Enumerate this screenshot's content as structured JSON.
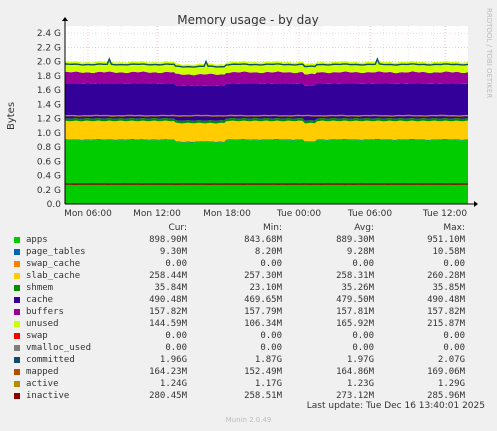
{
  "chart_data": {
    "type": "area",
    "title": "Memory usage - by day",
    "ylabel": "Bytes",
    "side_label": "RRDTOOL / TOBI OETIKER",
    "ylim": [
      0,
      2.5
    ],
    "y_unit": "G",
    "y_ticks": [
      "0.0",
      "0.2",
      "0.4",
      "0.6",
      "0.8",
      "1.0",
      "1.2",
      "1.4",
      "1.6",
      "1.8",
      "2.0",
      "2.2",
      "2.4"
    ],
    "x_ticks": [
      "Mon 06:00",
      "Mon 12:00",
      "Mon 18:00",
      "Tue 00:00",
      "Tue 06:00",
      "Tue 12:00"
    ],
    "stack_order": [
      "apps",
      "page_tables",
      "swap_cache",
      "slab_cache",
      "shmem",
      "cache",
      "buffers",
      "unused"
    ],
    "series": [
      {
        "name": "apps",
        "color": "#00cc00",
        "value_gb": 0.899
      },
      {
        "name": "page_tables",
        "color": "#0066b3",
        "value_gb": 0.0093
      },
      {
        "name": "swap_cache",
        "color": "#ff8000",
        "value_gb": 0.0
      },
      {
        "name": "slab_cache",
        "color": "#ffcc00",
        "value_gb": 0.258
      },
      {
        "name": "shmem",
        "color": "#008f00",
        "value_gb": 0.0358
      },
      {
        "name": "cache",
        "color": "#330099",
        "value_gb": 0.49
      },
      {
        "name": "buffers",
        "color": "#990099",
        "value_gb": 0.158
      },
      {
        "name": "unused",
        "color": "#ccff00",
        "value_gb": 0.145
      }
    ],
    "lines": [
      {
        "name": "committed",
        "color": "#0f4c6b",
        "value_gb": 1.96
      },
      {
        "name": "active",
        "color": "#b38f00",
        "value_gb": 1.24
      },
      {
        "name": "inactive",
        "color": "#8f0000",
        "value_gb": 0.28
      }
    ]
  },
  "legend": {
    "headers": {
      "cur": "Cur:",
      "min": "Min:",
      "avg": "Avg:",
      "max": "Max:"
    },
    "rows": [
      {
        "name": "apps",
        "color": "#00cc00",
        "cur": "898.90M",
        "min": "843.68M",
        "avg": "889.30M",
        "max": "951.10M"
      },
      {
        "name": "page_tables",
        "color": "#0066b3",
        "cur": "9.30M",
        "min": "8.20M",
        "avg": "9.28M",
        "max": "10.58M"
      },
      {
        "name": "swap_cache",
        "color": "#ff8000",
        "cur": "0.00",
        "min": "0.00",
        "avg": "0.00",
        "max": "0.00"
      },
      {
        "name": "slab_cache",
        "color": "#ffcc00",
        "cur": "258.44M",
        "min": "257.30M",
        "avg": "258.31M",
        "max": "260.28M"
      },
      {
        "name": "shmem",
        "color": "#008f00",
        "cur": "35.84M",
        "min": "23.10M",
        "avg": "35.26M",
        "max": "35.85M"
      },
      {
        "name": "cache",
        "color": "#330099",
        "cur": "490.48M",
        "min": "469.65M",
        "avg": "479.50M",
        "max": "490.48M"
      },
      {
        "name": "buffers",
        "color": "#990099",
        "cur": "157.82M",
        "min": "157.79M",
        "avg": "157.81M",
        "max": "157.82M"
      },
      {
        "name": "unused",
        "color": "#ccff00",
        "cur": "144.59M",
        "min": "106.34M",
        "avg": "165.92M",
        "max": "215.87M"
      },
      {
        "name": "swap",
        "color": "#ff0000",
        "cur": "0.00",
        "min": "0.00",
        "avg": "0.00",
        "max": "0.00"
      },
      {
        "name": "vmalloc_used",
        "color": "#7f7f7f",
        "cur": "0.00",
        "min": "0.00",
        "avg": "0.00",
        "max": "0.00"
      },
      {
        "name": "committed",
        "color": "#0f4c6b",
        "cur": "1.96G",
        "min": "1.87G",
        "avg": "1.97G",
        "max": "2.07G"
      },
      {
        "name": "mapped",
        "color": "#b34d00",
        "cur": "164.23M",
        "min": "152.49M",
        "avg": "164.86M",
        "max": "169.06M"
      },
      {
        "name": "active",
        "color": "#b38f00",
        "cur": "1.24G",
        "min": "1.17G",
        "avg": "1.23G",
        "max": "1.29G"
      },
      {
        "name": "inactive",
        "color": "#8f0000",
        "cur": "280.45M",
        "min": "258.51M",
        "avg": "273.12M",
        "max": "285.96M"
      }
    ]
  },
  "footer": "Last update: Tue Dec 16 13:40:01 2025",
  "munin": "Munin 2.0.49"
}
